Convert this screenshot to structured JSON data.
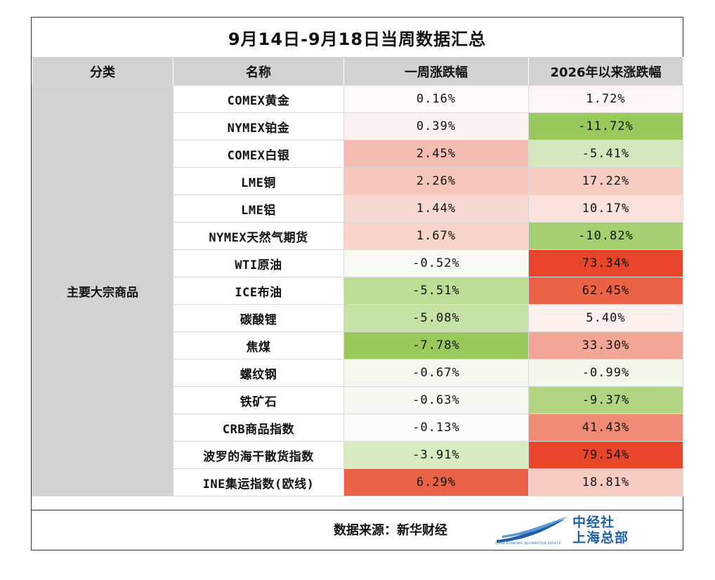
{
  "title": "9月14日-9月18日当周数据汇总",
  "headers": [
    "分类",
    "名称",
    "一周涨跌幅",
    "2026年以来涨跌幅"
  ],
  "category": "主要大宗商品",
  "rows": [
    {
      "name": "COMEX黄金",
      "week": "0.16%",
      "ytd": "1.72%",
      "week_color": "#fefaf9",
      "ytd_color": "#fef6f4"
    },
    {
      "name": "NYMEX铂金",
      "week": "0.39%",
      "ytd": "-11.72%",
      "week_color": "#fdf1ef",
      "ytd_color": "#98c95a"
    },
    {
      "name": "COMEX白银",
      "week": "2.45%",
      "ytd": "-5.41%",
      "week_color": "#f5bdb2",
      "ytd_color": "#d4e8bd"
    },
    {
      "name": "LME铜",
      "week": "2.26%",
      "ytd": "17.22%",
      "week_color": "#f6c5bb",
      "ytd_color": "#f7ccc2"
    },
    {
      "name": "LME铝",
      "week": "1.44%",
      "ytd": "10.17%",
      "week_color": "#f9dad3",
      "ytd_color": "#fbe1db"
    },
    {
      "name": "NYMEX天然气期货",
      "week": "1.67%",
      "ytd": "-10.82%",
      "week_color": "#f8d3cb",
      "ytd_color": "#a6d070"
    },
    {
      "name": "WTI原油",
      "week": "-0.52%",
      "ytd": "73.34%",
      "week_color": "#f6faf2",
      "ytd_color": "#e8452a"
    },
    {
      "name": "ICE布油",
      "week": "-5.51%",
      "ytd": "62.45%",
      "week_color": "#bcdd95",
      "ytd_color": "#eb6245"
    },
    {
      "name": "碳酸锂",
      "week": "-5.08%",
      "ytd": "5.40%",
      "week_color": "#c6e2a4",
      "ytd_color": "#fdf0ec"
    },
    {
      "name": "焦煤",
      "week": "-7.78%",
      "ytd": "33.30%",
      "week_color": "#98c95a",
      "ytd_color": "#f2a796"
    },
    {
      "name": "螺纹钢",
      "week": "-0.67%",
      "ytd": "-0.99%",
      "week_color": "#f4f9ef",
      "ytd_color": "#f2f8ec"
    },
    {
      "name": "铁矿石",
      "week": "-0.63%",
      "ytd": "-9.37%",
      "week_color": "#f5f9ef",
      "ytd_color": "#b1d581"
    },
    {
      "name": "CRB商品指数",
      "week": "-0.13%",
      "ytd": "41.43%",
      "week_color": "#fcfdfa",
      "ytd_color": "#ef8b75"
    },
    {
      "name": "波罗的海干散货指数",
      "week": "-3.91%",
      "ytd": "79.54%",
      "week_color": "#d7eac2",
      "ytd_color": "#e8452a"
    },
    {
      "name": "INE集运指数(欧线)",
      "week": "6.29%",
      "ytd": "18.81%",
      "week_color": "#e96246",
      "ytd_color": "#f7cbc2"
    }
  ],
  "source": "数据来源：新华财经",
  "logo": {
    "line1": "中经社",
    "line2": "上海总部",
    "small": "CHINA ECONOMIC INFORMATION SERVICE",
    "color": "#1f5fa8"
  }
}
